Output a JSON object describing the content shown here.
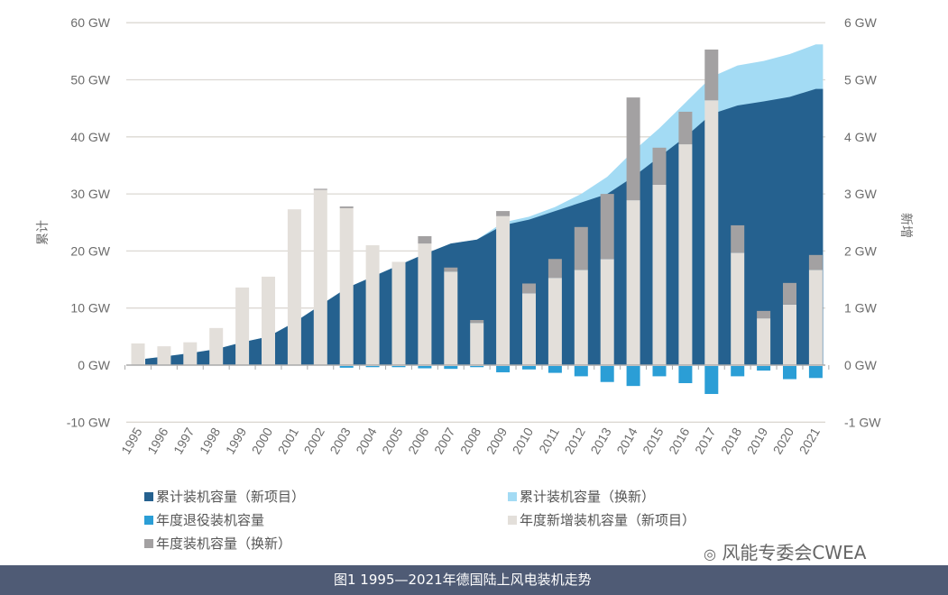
{
  "chart_data": {
    "type": "bar+area",
    "title": "",
    "ylabel_left": "累计",
    "ylabel_right": "新增",
    "ylim_left": [
      -10,
      60
    ],
    "ylim_right": [
      -1,
      6
    ],
    "yticks_left": [
      "60 GW",
      "50 GW",
      "40 GW",
      "30 GW",
      "20 GW",
      "10 GW",
      "0 GW",
      "-10 GW"
    ],
    "yticks_right": [
      "6 GW",
      "5 GW",
      "4 GW",
      "3 GW",
      "2 GW",
      "1 GW",
      "0 GW",
      "-1 GW"
    ],
    "grid": true,
    "legend_position": "bottom",
    "categories": [
      "1995",
      "1996",
      "1997",
      "1998",
      "1999",
      "2000",
      "2001",
      "2002",
      "2003",
      "2004",
      "2005",
      "2006",
      "2007",
      "2008",
      "2009",
      "2010",
      "2011",
      "2012",
      "2013",
      "2014",
      "2015",
      "2016",
      "2017",
      "2018",
      "2019",
      "2020",
      "2021"
    ],
    "series": [
      {
        "name": "累计装机容量（新项目）",
        "type": "area",
        "axis": "left",
        "color": "#25618f",
        "values": [
          1.1,
          1.5,
          2.1,
          2.8,
          4.0,
          5.0,
          7.5,
          10.5,
          13.5,
          15.5,
          17.5,
          19.5,
          21.3,
          22.0,
          24.5,
          25.5,
          27.0,
          28.5,
          30.0,
          33.0,
          36.5,
          40.0,
          44.0,
          45.5,
          46.2,
          47.0,
          48.4
        ]
      },
      {
        "name": "累计装机容量（换新）",
        "type": "area",
        "axis": "left",
        "color": "#a3dbf4",
        "values": [
          1.1,
          1.5,
          2.1,
          2.8,
          4.0,
          5.0,
          7.5,
          10.5,
          13.5,
          15.5,
          17.5,
          19.5,
          21.3,
          22.0,
          25.0,
          26.0,
          27.7,
          30.0,
          33.0,
          37.5,
          41.5,
          46.0,
          50.5,
          52.5,
          53.3,
          54.5,
          56.2
        ]
      },
      {
        "name": "年度退役装机容量",
        "type": "bar",
        "axis": "right",
        "color": "#2b9ed6",
        "values": [
          0,
          0,
          0,
          0,
          0,
          0,
          0,
          0,
          -0.03,
          -0.02,
          -0.02,
          -0.04,
          -0.05,
          -0.02,
          -0.11,
          -0.06,
          -0.12,
          -0.18,
          -0.28,
          -0.35,
          -0.18,
          -0.3,
          -0.49,
          -0.18,
          -0.08,
          -0.23,
          -0.21
        ]
      },
      {
        "name": "年度新增装机容量（新项目）",
        "type": "bar",
        "axis": "right",
        "color": "#e3dfda",
        "values": [
          0.38,
          0.33,
          0.4,
          0.65,
          1.36,
          1.55,
          2.73,
          3.07,
          2.75,
          2.1,
          1.81,
          2.13,
          1.64,
          0.74,
          2.61,
          1.26,
          1.53,
          1.67,
          1.86,
          2.89,
          3.16,
          3.87,
          4.64,
          1.97,
          0.82,
          1.06,
          1.67
        ]
      },
      {
        "name": "年度装机容量（换新）",
        "type": "bar",
        "axis": "right",
        "color": "#a3a1a2",
        "values": [
          0,
          0,
          0,
          0,
          0,
          0,
          0,
          0.02,
          0.03,
          0,
          0,
          0.13,
          0.07,
          0.05,
          0.09,
          0.17,
          0.33,
          0.75,
          1.14,
          1.8,
          0.65,
          0.57,
          0.89,
          0.48,
          0.13,
          0.38,
          0.26
        ]
      }
    ]
  },
  "caption": "图1 1995—2021年德国陆上风电装机走势",
  "watermark": "风能专委会CWEA"
}
